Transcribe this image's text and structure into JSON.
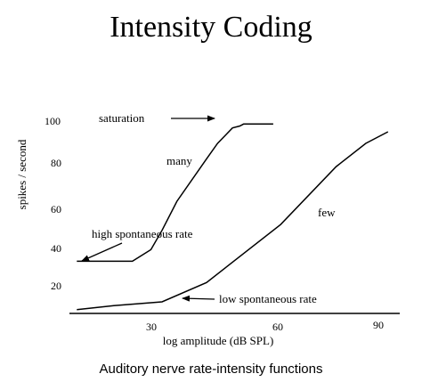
{
  "title": "Intensity Coding",
  "caption": "Auditory nerve rate-intensity functions",
  "chart_data": {
    "type": "line",
    "xlabel": "log amplitude (dB SPL)",
    "ylabel": "spikes / second",
    "xticks": [
      30,
      60,
      90
    ],
    "yticks": [
      20,
      40,
      60,
      80,
      100
    ],
    "xlim": [
      8,
      95
    ],
    "ylim": [
      4,
      104
    ],
    "series": [
      {
        "name": "high spontaneous rate",
        "points": [
          [
            10,
            31
          ],
          [
            25,
            31
          ],
          [
            30,
            37
          ],
          [
            33,
            47
          ],
          [
            37,
            62
          ],
          [
            45,
            84
          ],
          [
            48,
            92
          ],
          [
            52,
            100
          ],
          [
            54,
            101
          ],
          [
            55,
            102
          ],
          [
            63,
            102
          ]
        ]
      },
      {
        "name": "low spontaneous rate",
        "points": [
          [
            10,
            6
          ],
          [
            20,
            8
          ],
          [
            33,
            10
          ],
          [
            45,
            20
          ],
          [
            65,
            50
          ],
          [
            80,
            80
          ],
          [
            88,
            92
          ],
          [
            94,
            98
          ]
        ]
      }
    ],
    "annotations": [
      {
        "text": "saturation",
        "x": 27,
        "y": 102
      },
      {
        "text": "many",
        "x": 40,
        "y": 84
      },
      {
        "text": "few",
        "x": 72,
        "y": 62
      },
      {
        "text": "high spontaneous rate",
        "x": 21,
        "y": 42
      },
      {
        "text": "low spontaneous rate",
        "x": 46,
        "y": 10
      }
    ]
  }
}
